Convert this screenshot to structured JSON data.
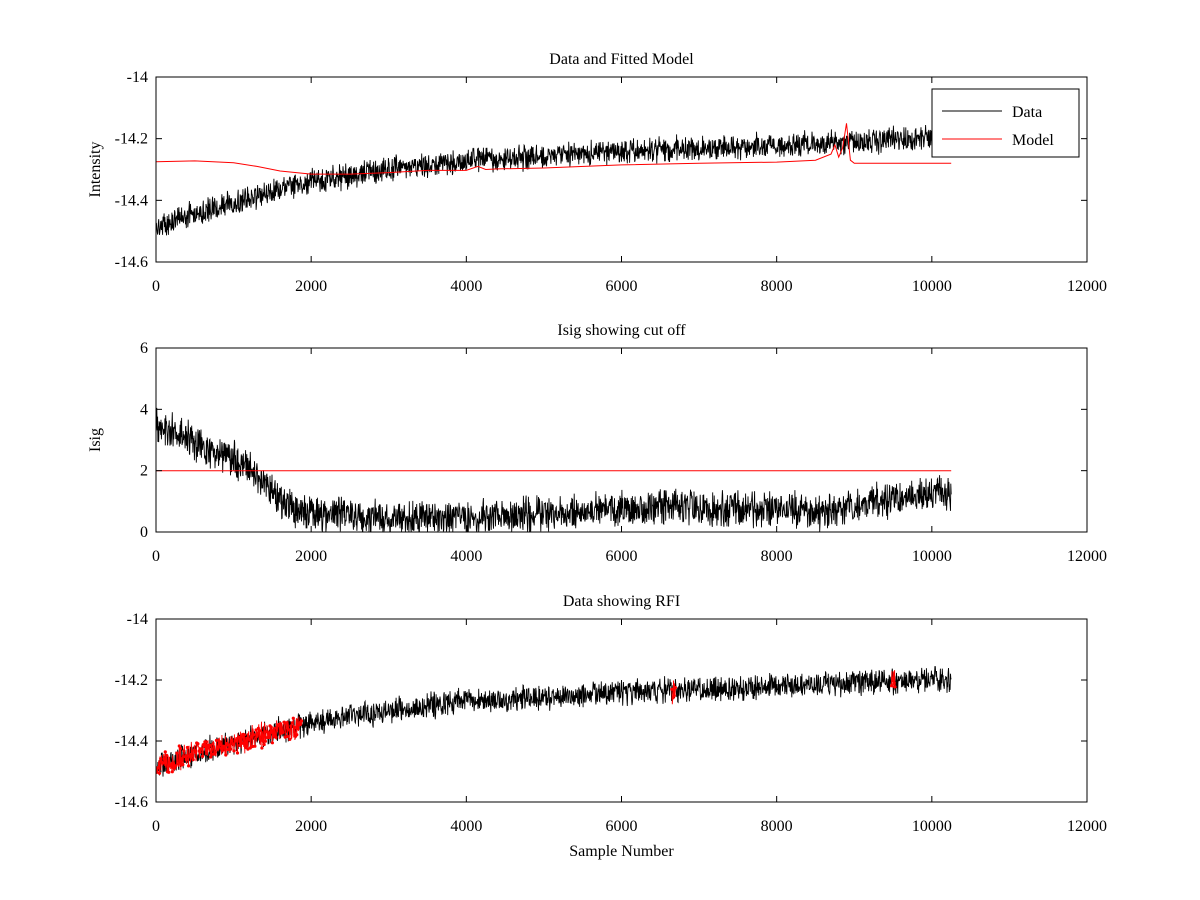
{
  "chart_data": [
    {
      "type": "line",
      "title": "Data and Fitted Model",
      "xlabel": "",
      "ylabel": "Intensity",
      "xlim": [
        0,
        12000
      ],
      "ylim": [
        -14.6,
        -14.0
      ],
      "xticks": [
        0,
        2000,
        4000,
        6000,
        8000,
        10000,
        12000
      ],
      "xtick_labels": [
        "0",
        "2000",
        "4000",
        "6000",
        "8000",
        "10000",
        "12000"
      ],
      "yticks": [
        -14.6,
        -14.4,
        -14.2,
        -14.0
      ],
      "ytick_labels": [
        "-14.6",
        "-14.4",
        "-14.2",
        "-14"
      ],
      "legend": {
        "position": "top-right",
        "entries": [
          "Data",
          "Model"
        ]
      },
      "series": [
        {
          "name": "Data",
          "color": "#000000",
          "noisy": true,
          "x": [
            0,
            500,
            1000,
            1500,
            2000,
            2500,
            3000,
            4000,
            5000,
            6000,
            7000,
            8000,
            9000,
            10000,
            10250
          ],
          "values": [
            -14.49,
            -14.44,
            -14.41,
            -14.37,
            -14.34,
            -14.32,
            -14.3,
            -14.27,
            -14.26,
            -14.24,
            -14.23,
            -14.22,
            -14.21,
            -14.2,
            -14.2
          ],
          "noise": 0.035
        },
        {
          "name": "Model",
          "color": "#ff0000",
          "noisy": false,
          "x": [
            0,
            500,
            1000,
            1300,
            1600,
            2000,
            2500,
            3000,
            3500,
            4000,
            4150,
            4250,
            4400,
            5000,
            6000,
            7000,
            8000,
            8500,
            8700,
            8750,
            8800,
            8850,
            8900,
            8950,
            9000,
            9500,
            10000,
            10250
          ],
          "values": [
            -14.275,
            -14.272,
            -14.278,
            -14.29,
            -14.305,
            -14.315,
            -14.315,
            -14.31,
            -14.303,
            -14.303,
            -14.29,
            -14.3,
            -14.298,
            -14.295,
            -14.285,
            -14.28,
            -14.276,
            -14.27,
            -14.25,
            -14.22,
            -14.26,
            -14.23,
            -14.15,
            -14.27,
            -14.28,
            -14.28,
            -14.28,
            -14.28
          ]
        }
      ]
    },
    {
      "type": "line",
      "title": "Isig showing cut off",
      "xlabel": "",
      "ylabel": "Isig",
      "xlim": [
        0,
        12000
      ],
      "ylim": [
        0,
        6
      ],
      "xticks": [
        0,
        2000,
        4000,
        6000,
        8000,
        10000,
        12000
      ],
      "xtick_labels": [
        "0",
        "2000",
        "4000",
        "6000",
        "8000",
        "10000",
        "12000"
      ],
      "yticks": [
        0,
        2,
        4,
        6
      ],
      "ytick_labels": [
        "0",
        "2",
        "4",
        "6"
      ],
      "series": [
        {
          "name": "Isig",
          "color": "#000000",
          "noisy": true,
          "x": [
            0,
            300,
            700,
            1000,
            1300,
            1600,
            1800,
            2000,
            3000,
            4000,
            5000,
            6000,
            7000,
            8000,
            8700,
            9000,
            9500,
            10000,
            10250
          ],
          "values": [
            3.5,
            3.2,
            2.6,
            2.4,
            1.8,
            1.1,
            0.7,
            0.6,
            0.45,
            0.45,
            0.55,
            0.75,
            0.8,
            0.75,
            0.6,
            0.9,
            1.1,
            1.2,
            1.2
          ],
          "noise": 0.5,
          "clip_min": 0
        },
        {
          "name": "Cut off",
          "color": "#ff0000",
          "noisy": false,
          "x": [
            0,
            10250
          ],
          "values": [
            2,
            2
          ]
        }
      ]
    },
    {
      "type": "line",
      "title": "Data showing RFI",
      "xlabel": "Sample Number",
      "ylabel": "",
      "xlim": [
        0,
        12000
      ],
      "ylim": [
        -14.6,
        -14.0
      ],
      "xticks": [
        0,
        2000,
        4000,
        6000,
        8000,
        10000,
        12000
      ],
      "xtick_labels": [
        "0",
        "2000",
        "4000",
        "6000",
        "8000",
        "10000",
        "12000"
      ],
      "yticks": [
        -14.6,
        -14.4,
        -14.2,
        -14.0
      ],
      "ytick_labels": [
        "-14.6",
        "-14.4",
        "-14.2",
        "-14"
      ],
      "series": [
        {
          "name": "Data",
          "color": "#000000",
          "noisy": true,
          "x": [
            0,
            500,
            1000,
            1500,
            2000,
            2500,
            3000,
            4000,
            5000,
            6000,
            7000,
            8000,
            9000,
            10000,
            10250
          ],
          "values": [
            -14.49,
            -14.44,
            -14.41,
            -14.37,
            -14.34,
            -14.32,
            -14.3,
            -14.27,
            -14.26,
            -14.24,
            -14.23,
            -14.22,
            -14.21,
            -14.2,
            -14.2
          ],
          "noise": 0.035
        },
        {
          "name": "RFI",
          "color": "#ff0000",
          "noisy": true,
          "markers": true,
          "segments": [
            {
              "x": [
                0,
                500,
                1000,
                1500,
                1880
              ],
              "values": [
                -14.49,
                -14.44,
                -14.41,
                -14.37,
                -14.35
              ],
              "noise": 0.035
            },
            {
              "x": [
                6650,
                6700
              ],
              "values": [
                -14.23,
                -14.23
              ],
              "noise": 0.04
            },
            {
              "x": [
                9480,
                9530
              ],
              "values": [
                -14.2,
                -14.2
              ],
              "noise": 0.035
            }
          ]
        }
      ]
    }
  ]
}
